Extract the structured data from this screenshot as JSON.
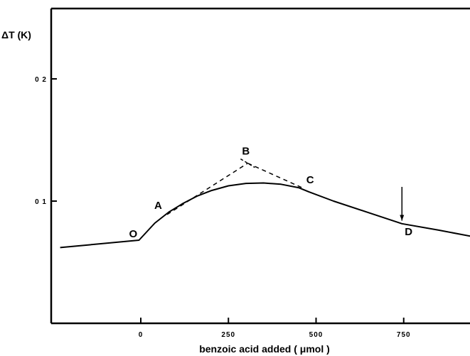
{
  "chart_data": {
    "type": "line",
    "title": "",
    "xlabel": "benzoic acid added ( μmol )",
    "ylabel": "ΔT (K)",
    "xlim": [
      -230,
      960
    ],
    "ylim": [
      0,
      0.27
    ],
    "xticks": [
      {
        "value": 0,
        "label": "0"
      },
      {
        "value": 250,
        "label": "250"
      },
      {
        "value": 500,
        "label": "500"
      },
      {
        "value": 750,
        "label": "750"
      }
    ],
    "yticks": [
      {
        "value": 0.1,
        "label": "0 1"
      },
      {
        "value": 0.2,
        "label": "0 2"
      }
    ],
    "series": [
      {
        "style": "solid",
        "points": [
          [
            -230,
            0.062
          ],
          [
            -5,
            0.068
          ],
          [
            40,
            0.082
          ],
          [
            80,
            0.091
          ],
          [
            120,
            0.098
          ],
          [
            160,
            0.104
          ],
          [
            200,
            0.1085
          ],
          [
            250,
            0.1125
          ],
          [
            300,
            0.1145
          ],
          [
            350,
            0.1148
          ],
          [
            400,
            0.1138
          ],
          [
            450,
            0.111
          ],
          [
            480,
            0.1075
          ],
          [
            550,
            0.1
          ],
          [
            650,
            0.0905
          ],
          [
            745,
            0.0815
          ],
          [
            850,
            0.0762
          ],
          [
            955,
            0.0705
          ]
        ]
      },
      {
        "style": "dashed",
        "points": [
          [
            75,
            0.089
          ],
          [
            305,
            0.131
          ]
        ]
      },
      {
        "style": "dashed",
        "points": [
          [
            305,
            0.131
          ],
          [
            460,
            0.111
          ]
        ]
      }
    ],
    "points": [
      {
        "label": "O",
        "x": -5,
        "y": 0.068
      },
      {
        "label": "A",
        "x": 75,
        "y": 0.089
      },
      {
        "label": "B",
        "x": 305,
        "y": 0.131
      },
      {
        "label": "C",
        "x": 460,
        "y": 0.111
      },
      {
        "label": "D",
        "x": 745,
        "y": 0.0815
      }
    ],
    "annotations": [
      {
        "type": "arrow",
        "x": 745,
        "y_from": 0.1,
        "y_to": 0.084
      }
    ],
    "grid": false,
    "legend": "none"
  }
}
